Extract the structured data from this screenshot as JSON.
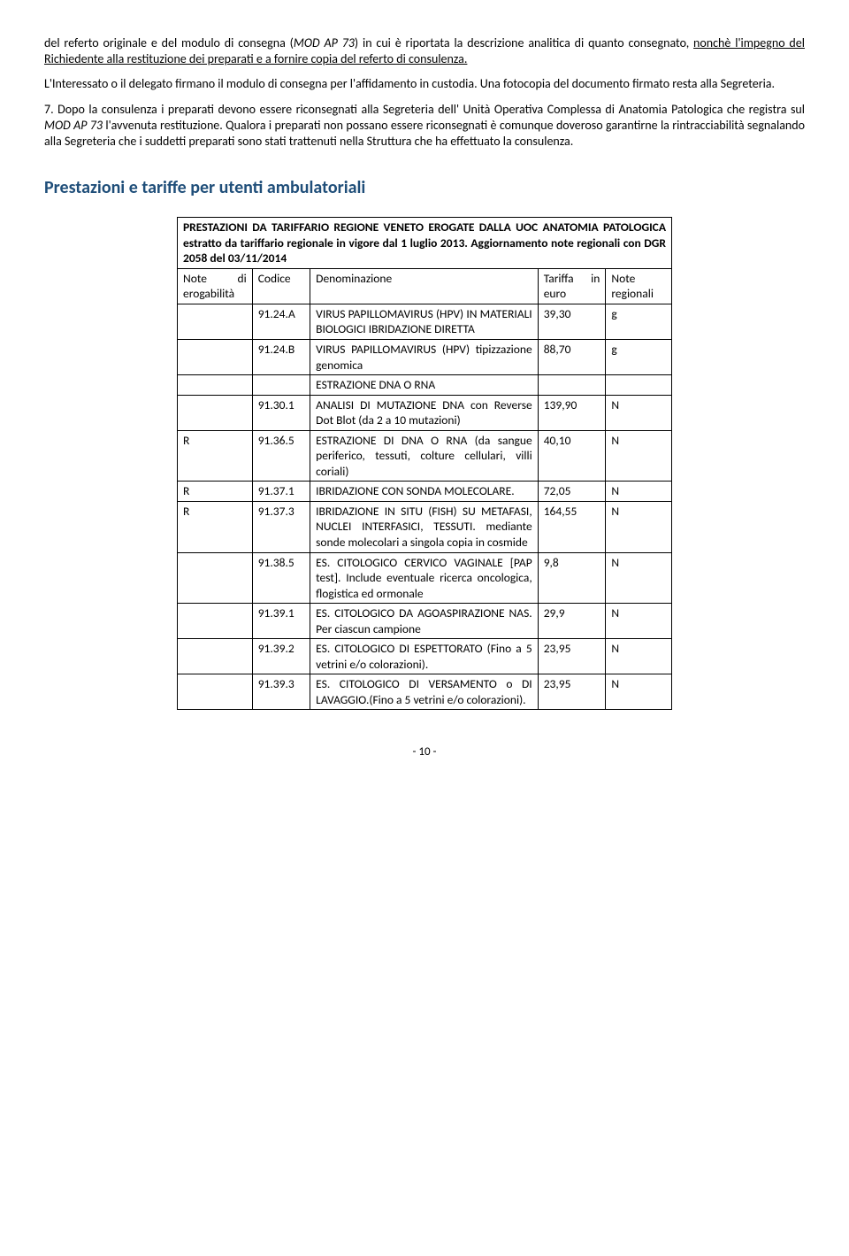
{
  "paragraphs": {
    "p1": "del referto originale e del modulo di consegna (MOD AP 73) in cui è riportata la descrizione analitica di quanto consegnato, nonchè l'impegno del Richiedente alla restituzione dei preparati e a fornire copia del referto di consulenza.",
    "p2": "L'Interessato o il delegato firmano il modulo di consegna per l'affidamento in custodia. Una fotocopia del documento firmato resta alla Segreteria.",
    "p3": "7. Dopo la consulenza i preparati devono essere riconsegnati alla Segreteria dell' Unità Operativa Complessa di Anatomia Patologica che registra sul MOD AP 73 l'avvenuta restituzione. Qualora i preparati non possano essere riconsegnati è comunque doveroso garantirne la rintracciabilità segnalando alla Segreteria che i suddetti preparati sono stati trattenuti nella Struttura che ha effettuato la consulenza."
  },
  "section_title": "Prestazioni e tariffe per utenti ambulatoriali",
  "table_title": "PRESTAZIONI DA TARIFFARIO REGIONE VENETO EROGATE DALLA UOC ANATOMIA PATOLOGICA estratto da tariffario regionale in vigore dal 1 luglio 2013. Aggiornamento note regionali con DGR 2058 del 03/11/2014",
  "columns": {
    "c1": "Note di erogabilità",
    "c2": "Codice",
    "c3": "Denominazione",
    "c4": "Tariffa in euro",
    "c5": "Note regionali"
  },
  "rows": [
    {
      "c1": "",
      "c2": "91.24.A",
      "c3": "VIRUS PAPILLOMAVIRUS (HPV) IN MATERIALI BIOLOGICI IBRIDAZIONE DIRETTA",
      "c4": "39,30",
      "c5": "g"
    },
    {
      "c1": "",
      "c2": "91.24.B",
      "c3": "VIRUS PAPILLOMAVIRUS (HPV) tipizzazione genomica",
      "c4": "88,70",
      "c5": "g"
    },
    {
      "c1": "",
      "c2": "",
      "c3": "ESTRAZIONE DNA O RNA",
      "c4": "",
      "c5": ""
    },
    {
      "c1": "",
      "c2": "91.30.1",
      "c3": "ANALISI DI MUTAZIONE DNA con Reverse Dot Blot (da 2 a 10 mutazioni)",
      "c4": "139,90",
      "c5": "N"
    },
    {
      "c1": "R",
      "c2": "91.36.5",
      "c3": "ESTRAZIONE DI DNA O RNA (da sangue periferico, tessuti, colture cellulari, villi coriali)",
      "c4": "40,10",
      "c5": "N"
    },
    {
      "c1": "R",
      "c2": "91.37.1",
      "c3": "IBRIDAZIONE CON SONDA MOLECOLARE.",
      "c4": "72,05",
      "c5": "N"
    },
    {
      "c1": "R",
      "c2": "91.37.3",
      "c3": "IBRIDAZIONE IN SITU (FISH) SU METAFASI, NUCLEI INTERFASICI, TESSUTI. mediante sonde molecolari a singola copia in cosmide",
      "c4": "164,55",
      "c5": "N"
    },
    {
      "c1": "",
      "c2": "91.38.5",
      "c3": "ES. CITOLOGICO CERVICO VAGINALE [PAP test]. Include eventuale ricerca oncologica, flogistica ed ormonale",
      "c4": "9,8",
      "c5": "N"
    },
    {
      "c1": "",
      "c2": "91.39.1",
      "c3": "ES. CITOLOGICO DA AGOASPIRAZIONE NAS. Per ciascun campione",
      "c4": "29,9",
      "c5": "N"
    },
    {
      "c1": "",
      "c2": "91.39.2",
      "c3": "ES. CITOLOGICO DI ESPETTORATO (Fino a 5 vetrini e/o colorazioni).",
      "c4": "23,95",
      "c5": "N"
    },
    {
      "c1": "",
      "c2": "91.39.3",
      "c3": "ES. CITOLOGICO DI VERSAMENTO o DI LAVAGGIO.(Fino a 5 vetrini e/o colorazioni).",
      "c4": "23,95",
      "c5": "N"
    }
  ],
  "page_number": "- 10 -"
}
